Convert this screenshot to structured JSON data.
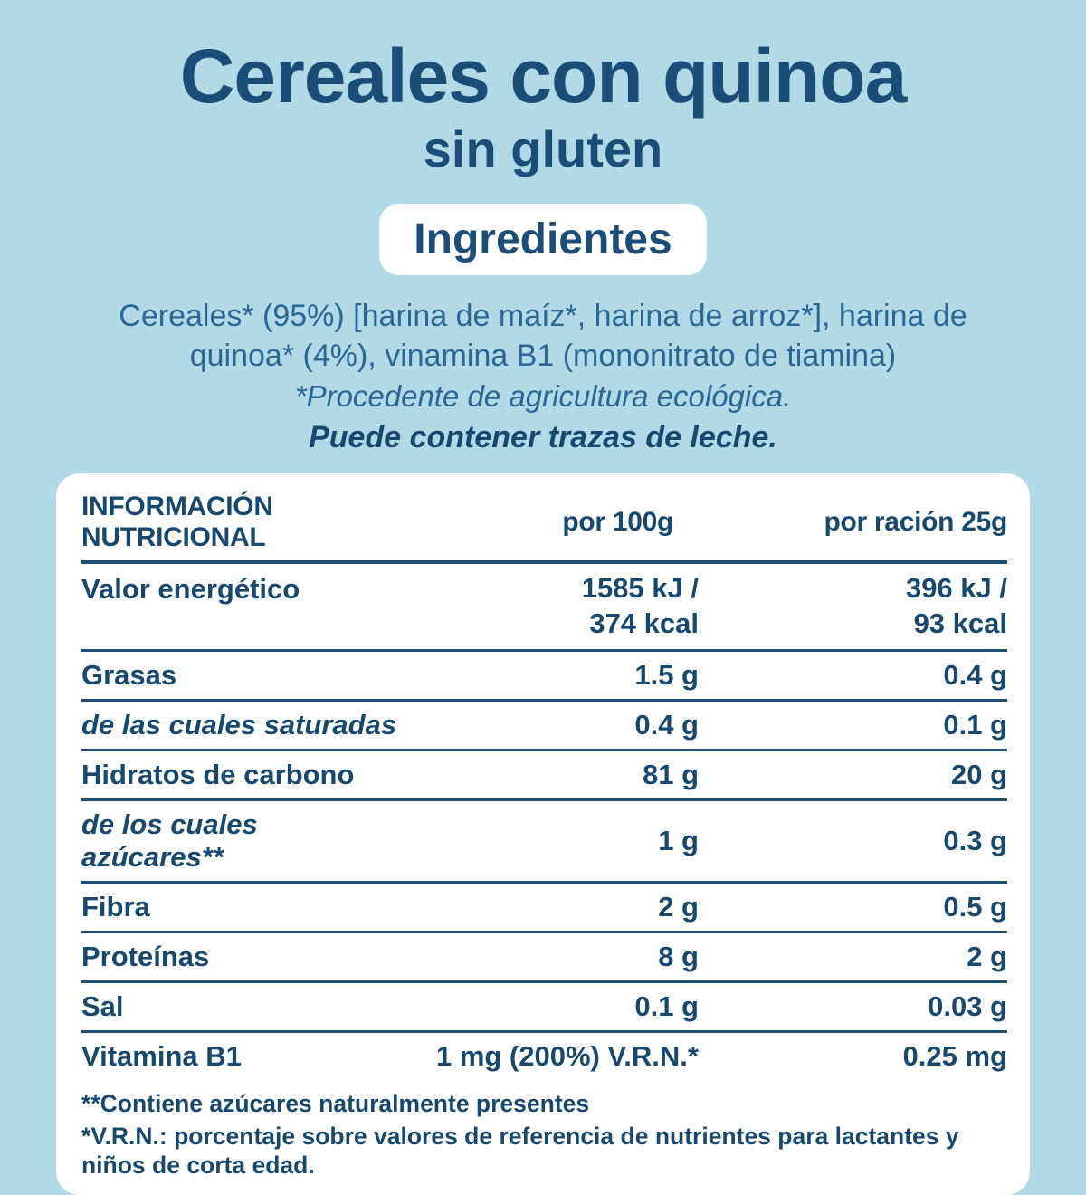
{
  "header": {
    "title": "Cereales con quinoa",
    "subtitle": "sin gluten",
    "ingredients_badge": "Ingredientes",
    "ingredients_text": "Cereales* (95%) [harina de maíz*, harina de arroz*], harina de quinoa* (4%), vinamina B1 (mononitrato de tiamina)",
    "organic_note": "*Procedente de agricultura ecológica.",
    "traces_note": "Puede contener trazas de leche."
  },
  "nutrition_table": {
    "col_headers": {
      "info": "INFORMACIÓN NUTRICIONAL",
      "per_100g": "por 100g",
      "per_portion": "por ración 25g"
    },
    "energy_row": {
      "label": "Valor energético",
      "per100_line1": "1585 kJ /",
      "per100_line2": "374 kcal",
      "per25_line1": "396 kJ /",
      "per25_line2": "93 kcal"
    },
    "rows": [
      {
        "label": "Grasas",
        "per100": "1.5 g",
        "per25": "0.4 g"
      },
      {
        "label": "de las cuales saturadas",
        "per100": "0.4 g",
        "per25": "0.1 g"
      },
      {
        "label": "Hidratos de carbono",
        "per100": "81 g",
        "per25": "20 g"
      },
      {
        "label": "de los cuales azúcares**",
        "per100": "1 g",
        "per25": "0.3 g"
      },
      {
        "label": "Fibra",
        "per100": "2 g",
        "per25": "0.5 g"
      },
      {
        "label": "Proteínas",
        "per100": "8 g",
        "per25": "2 g"
      },
      {
        "label": "Sal",
        "per100": "0.1 g",
        "per25": "0.03 g"
      },
      {
        "label": "Vitamina B1",
        "per100": "1 mg (200%) V.R.N.*",
        "per25": "0.25 mg"
      }
    ],
    "footnotes": [
      "**Contiene azúcares naturalmente presentes",
      "*V.R.N.: porcentaje sobre valores de referencia de nutrientes para lactantes y niños de corta edad."
    ]
  },
  "colors": {
    "background": "#b2dae6",
    "navy_text": "#17496f",
    "title_blue": "#1a4d78",
    "ingredients_blue": "#2b6795",
    "card_white": "#ffffff"
  }
}
